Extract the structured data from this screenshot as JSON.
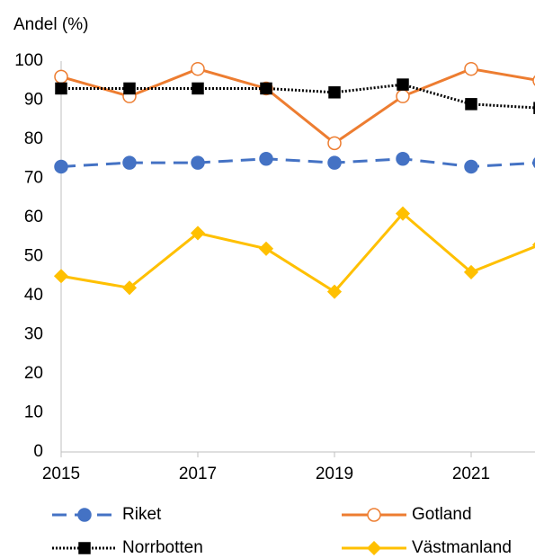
{
  "chart_data": {
    "type": "line",
    "y_label": "Andel (%)",
    "x": [
      2015,
      2016,
      2017,
      2018,
      2019,
      2020,
      2021,
      2022
    ],
    "xlim": [
      2015,
      2022
    ],
    "xticks": [
      2015,
      2017,
      2019,
      2021
    ],
    "ylim": [
      0,
      100
    ],
    "yticks": [
      0,
      10,
      20,
      30,
      40,
      50,
      60,
      70,
      80,
      90,
      100
    ],
    "grid": false,
    "series": [
      {
        "name": "Riket",
        "color": "#4472c4",
        "dash": "dashed",
        "marker": "circle",
        "marker_fill": "#4472c4",
        "values": [
          73,
          74,
          74,
          75,
          74,
          75,
          73,
          74
        ]
      },
      {
        "name": "Gotland",
        "color": "#ed7d31",
        "dash": "solid",
        "marker": "circle",
        "marker_fill": "#ffffff",
        "values": [
          96,
          91,
          98,
          93,
          79,
          91,
          98,
          95
        ]
      },
      {
        "name": "Norrbotten",
        "color": "#000000",
        "dash": "dotted",
        "marker": "square",
        "marker_fill": "#000000",
        "values": [
          93,
          93,
          93,
          93,
          92,
          94,
          89,
          88
        ]
      },
      {
        "name": "Västmanland",
        "color": "#ffc000",
        "dash": "solid",
        "marker": "diamond",
        "marker_fill": "#ffc000",
        "values": [
          45,
          42,
          56,
          52,
          41,
          61,
          46,
          53
        ]
      }
    ]
  }
}
